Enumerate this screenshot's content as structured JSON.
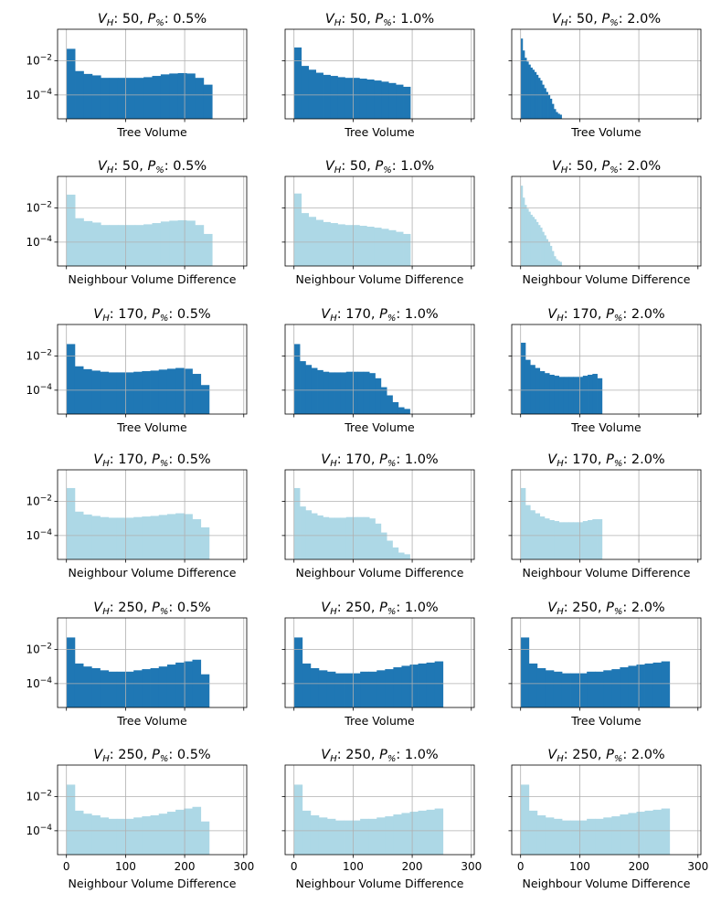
{
  "figure": {
    "rows": 6,
    "cols": 3,
    "sharex": true,
    "sharey": true,
    "grid": true,
    "yscale": "log",
    "colors": {
      "tree": "#1f77b4",
      "neighbour": "#add8e6",
      "grid": "#b0b0b0",
      "spine": "#000000"
    }
  },
  "chart_data": [
    {
      "type": "bar",
      "row": 0,
      "col": 0,
      "title_prefix": "V",
      "title_sub": "H",
      "title_mid": ": 50, ",
      "title_p": "P",
      "title_psub": "%",
      "title_suffix": ": 0.5%",
      "xlabel": "Tree Volume",
      "series": "tree",
      "bin_width": 14.5,
      "xlim": [
        -15,
        305
      ],
      "ylim": [
        4e-06,
        0.7
      ],
      "values": [
        0.05,
        0.0025,
        0.0017,
        0.0014,
        0.001,
        0.001,
        0.001,
        0.001,
        0.001,
        0.0011,
        0.0013,
        0.0016,
        0.0018,
        0.0019,
        0.0018,
        0.001,
        0.0004
      ]
    },
    {
      "type": "bar",
      "row": 0,
      "col": 1,
      "title_prefix": "V",
      "title_sub": "H",
      "title_mid": ": 50, ",
      "title_p": "P",
      "title_psub": "%",
      "title_suffix": ": 1.0%",
      "xlabel": "Tree Volume",
      "series": "tree",
      "bin_width": 12.3,
      "xlim": [
        -15,
        305
      ],
      "ylim": [
        4e-06,
        0.7
      ],
      "values": [
        0.06,
        0.005,
        0.003,
        0.002,
        0.0015,
        0.0013,
        0.0011,
        0.001,
        0.001,
        0.0009,
        0.0008,
        0.0007,
        0.0006,
        0.0005,
        0.0004,
        0.0003
      ]
    },
    {
      "type": "bar",
      "row": 0,
      "col": 2,
      "title_prefix": "V",
      "title_sub": "H",
      "title_mid": ": 50, ",
      "title_p": "P",
      "title_psub": "%",
      "title_suffix": ": 2.0%",
      "xlabel": "Tree Volume",
      "series": "tree",
      "bin_width": 3.3,
      "xlim": [
        -15,
        305
      ],
      "ylim": [
        4e-06,
        0.7
      ],
      "values": [
        0.2,
        0.04,
        0.015,
        0.009,
        0.006,
        0.004,
        0.003,
        0.0022,
        0.0015,
        0.001,
        0.0007,
        0.0004,
        0.00025,
        0.00015,
        0.0001,
        6e-05,
        3e-05,
        1.5e-05,
        1e-05,
        8e-06,
        7e-06
      ]
    },
    {
      "type": "bar",
      "row": 1,
      "col": 0,
      "title_prefix": "V",
      "title_sub": "H",
      "title_mid": ": 50, ",
      "title_p": "P",
      "title_psub": "%",
      "title_suffix": ": 0.5%",
      "xlabel": "Neighbour Volume Difference",
      "series": "neighbour",
      "bin_width": 14.5,
      "xlim": [
        -15,
        305
      ],
      "ylim": [
        4e-06,
        0.7
      ],
      "values": [
        0.06,
        0.0025,
        0.0017,
        0.0014,
        0.001,
        0.001,
        0.001,
        0.001,
        0.001,
        0.0011,
        0.0013,
        0.0016,
        0.0018,
        0.0019,
        0.0018,
        0.001,
        0.0003
      ]
    },
    {
      "type": "bar",
      "row": 1,
      "col": 1,
      "title_prefix": "V",
      "title_sub": "H",
      "title_mid": ": 50, ",
      "title_p": "P",
      "title_psub": "%",
      "title_suffix": ": 1.0%",
      "xlabel": "Neighbour Volume Difference",
      "series": "neighbour",
      "bin_width": 12.3,
      "xlim": [
        -15,
        305
      ],
      "ylim": [
        4e-06,
        0.7
      ],
      "values": [
        0.07,
        0.005,
        0.003,
        0.002,
        0.0015,
        0.0013,
        0.0011,
        0.001,
        0.001,
        0.0009,
        0.0008,
        0.0007,
        0.0006,
        0.0005,
        0.0004,
        0.0003
      ]
    },
    {
      "type": "bar",
      "row": 1,
      "col": 2,
      "title_prefix": "V",
      "title_sub": "H",
      "title_mid": ": 50, ",
      "title_p": "P",
      "title_psub": "%",
      "title_suffix": ": 2.0%",
      "xlabel": "Neighbour Volume Difference",
      "series": "neighbour",
      "bin_width": 3.3,
      "xlim": [
        -15,
        305
      ],
      "ylim": [
        4e-06,
        0.7
      ],
      "values": [
        0.2,
        0.04,
        0.015,
        0.009,
        0.006,
        0.004,
        0.003,
        0.0022,
        0.0015,
        0.001,
        0.0007,
        0.0004,
        0.00025,
        0.00015,
        0.0001,
        6e-05,
        3e-05,
        1.5e-05,
        1e-05,
        8e-06,
        7e-06
      ]
    },
    {
      "type": "bar",
      "row": 2,
      "col": 0,
      "title_prefix": "V",
      "title_sub": "H",
      "title_mid": ": 170, ",
      "title_p": "P",
      "title_psub": "%",
      "title_suffix": ": 0.5%",
      "xlabel": "Tree Volume",
      "series": "tree",
      "bin_width": 14.2,
      "xlim": [
        -15,
        305
      ],
      "ylim": [
        4e-06,
        0.7
      ],
      "values": [
        0.05,
        0.0025,
        0.0017,
        0.0014,
        0.0012,
        0.0011,
        0.0011,
        0.0011,
        0.0012,
        0.0013,
        0.0014,
        0.0016,
        0.0018,
        0.002,
        0.0018,
        0.0009,
        0.0002
      ]
    },
    {
      "type": "bar",
      "row": 2,
      "col": 1,
      "title_prefix": "V",
      "title_sub": "H",
      "title_mid": ": 170, ",
      "title_p": "P",
      "title_psub": "%",
      "title_suffix": ": 1.0%",
      "xlabel": "Tree Volume",
      "series": "tree",
      "bin_width": 9.8,
      "xlim": [
        -15,
        305
      ],
      "ylim": [
        4e-06,
        0.7
      ],
      "values": [
        0.05,
        0.005,
        0.003,
        0.002,
        0.0015,
        0.0012,
        0.0011,
        0.0011,
        0.0011,
        0.0012,
        0.0012,
        0.0012,
        0.0012,
        0.001,
        0.0005,
        0.00015,
        5e-05,
        2e-05,
        1e-05,
        8e-06
      ]
    },
    {
      "type": "bar",
      "row": 2,
      "col": 2,
      "title_prefix": "V",
      "title_sub": "H",
      "title_mid": ": 170, ",
      "title_p": "P",
      "title_psub": "%",
      "title_suffix": ": 2.0%",
      "xlabel": "Tree Volume",
      "series": "tree",
      "bin_width": 8.1,
      "xlim": [
        -15,
        305
      ],
      "ylim": [
        4e-06,
        0.7
      ],
      "values": [
        0.06,
        0.006,
        0.003,
        0.002,
        0.0013,
        0.001,
        0.0008,
        0.0007,
        0.0006,
        0.0006,
        0.0006,
        0.0006,
        0.0006,
        0.0007,
        0.0008,
        0.0009,
        0.0005
      ]
    },
    {
      "type": "bar",
      "row": 3,
      "col": 0,
      "title_prefix": "V",
      "title_sub": "H",
      "title_mid": ": 170, ",
      "title_p": "P",
      "title_psub": "%",
      "title_suffix": ": 0.5%",
      "xlabel": "Neighbour Volume Difference",
      "series": "neighbour",
      "bin_width": 14.2,
      "xlim": [
        -15,
        305
      ],
      "ylim": [
        4e-06,
        0.7
      ],
      "values": [
        0.06,
        0.0025,
        0.0017,
        0.0014,
        0.0012,
        0.0011,
        0.0011,
        0.0011,
        0.0012,
        0.0013,
        0.0014,
        0.0016,
        0.0018,
        0.002,
        0.0018,
        0.0009,
        0.0003
      ]
    },
    {
      "type": "bar",
      "row": 3,
      "col": 1,
      "title_prefix": "V",
      "title_sub": "H",
      "title_mid": ": 170, ",
      "title_p": "P",
      "title_psub": "%",
      "title_suffix": ": 1.0%",
      "xlabel": "Neighbour Volume Difference",
      "series": "neighbour",
      "bin_width": 9.8,
      "xlim": [
        -15,
        305
      ],
      "ylim": [
        4e-06,
        0.7
      ],
      "values": [
        0.06,
        0.005,
        0.003,
        0.002,
        0.0015,
        0.0012,
        0.0011,
        0.0011,
        0.0011,
        0.0012,
        0.0012,
        0.0012,
        0.0012,
        0.001,
        0.0005,
        0.00015,
        5e-05,
        2e-05,
        1e-05,
        8e-06
      ]
    },
    {
      "type": "bar",
      "row": 3,
      "col": 2,
      "title_prefix": "V",
      "title_sub": "H",
      "title_mid": ": 170, ",
      "title_p": "P",
      "title_psub": "%",
      "title_suffix": ": 2.0%",
      "xlabel": "Neighbour Volume Difference",
      "series": "neighbour",
      "bin_width": 8.1,
      "xlim": [
        -15,
        305
      ],
      "ylim": [
        4e-06,
        0.7
      ],
      "values": [
        0.06,
        0.006,
        0.003,
        0.002,
        0.0013,
        0.001,
        0.0008,
        0.0007,
        0.0006,
        0.0006,
        0.0006,
        0.0006,
        0.0006,
        0.0007,
        0.0008,
        0.0009,
        0.0009
      ]
    },
    {
      "type": "bar",
      "row": 4,
      "col": 0,
      "title_prefix": "V",
      "title_sub": "H",
      "title_mid": ": 250, ",
      "title_p": "P",
      "title_psub": "%",
      "title_suffix": ": 0.5%",
      "xlabel": "Tree Volume",
      "series": "tree",
      "bin_width": 14.2,
      "xlim": [
        -15,
        305
      ],
      "ylim": [
        4e-06,
        0.7
      ],
      "values": [
        0.05,
        0.0015,
        0.001,
        0.0008,
        0.0006,
        0.0005,
        0.0005,
        0.0005,
        0.0006,
        0.0007,
        0.0008,
        0.001,
        0.0013,
        0.0017,
        0.002,
        0.0025,
        0.00035
      ]
    },
    {
      "type": "bar",
      "row": 4,
      "col": 1,
      "title_prefix": "V",
      "title_sub": "H",
      "title_mid": ": 250, ",
      "title_p": "P",
      "title_psub": "%",
      "title_suffix": ": 1.0%",
      "xlabel": "Tree Volume",
      "series": "tree",
      "bin_width": 14.0,
      "xlim": [
        -15,
        305
      ],
      "ylim": [
        4e-06,
        0.7
      ],
      "values": [
        0.05,
        0.0015,
        0.0008,
        0.0006,
        0.0005,
        0.0004,
        0.0004,
        0.0004,
        0.0005,
        0.0005,
        0.0006,
        0.0007,
        0.0009,
        0.0011,
        0.0013,
        0.0015,
        0.0017,
        0.002
      ]
    },
    {
      "type": "bar",
      "row": 4,
      "col": 2,
      "title_prefix": "V",
      "title_sub": "H",
      "title_mid": ": 250, ",
      "title_p": "P",
      "title_psub": "%",
      "title_suffix": ": 2.0%",
      "xlabel": "Tree Volume",
      "series": "tree",
      "bin_width": 14.0,
      "xlim": [
        -15,
        305
      ],
      "ylim": [
        4e-06,
        0.7
      ],
      "values": [
        0.05,
        0.0015,
        0.0008,
        0.0006,
        0.0005,
        0.0004,
        0.0004,
        0.0004,
        0.0005,
        0.0005,
        0.0006,
        0.0007,
        0.0009,
        0.0011,
        0.0013,
        0.0015,
        0.0017,
        0.002
      ]
    },
    {
      "type": "bar",
      "row": 5,
      "col": 0,
      "title_prefix": "V",
      "title_sub": "H",
      "title_mid": ": 250, ",
      "title_p": "P",
      "title_psub": "%",
      "title_suffix": ": 0.5%",
      "xlabel": "Neighbour Volume Difference",
      "series": "neighbour",
      "bin_width": 14.2,
      "xlim": [
        -15,
        305
      ],
      "ylim": [
        4e-06,
        0.7
      ],
      "values": [
        0.05,
        0.0015,
        0.001,
        0.0008,
        0.0006,
        0.0005,
        0.0005,
        0.0005,
        0.0006,
        0.0007,
        0.0008,
        0.001,
        0.0013,
        0.0017,
        0.002,
        0.0025,
        0.00035
      ]
    },
    {
      "type": "bar",
      "row": 5,
      "col": 1,
      "title_prefix": "V",
      "title_sub": "H",
      "title_mid": ": 250, ",
      "title_p": "P",
      "title_psub": "%",
      "title_suffix": ": 1.0%",
      "xlabel": "Neighbour Volume Difference",
      "series": "neighbour",
      "bin_width": 14.0,
      "xlim": [
        -15,
        305
      ],
      "ylim": [
        4e-06,
        0.7
      ],
      "values": [
        0.05,
        0.0015,
        0.0008,
        0.0006,
        0.0005,
        0.0004,
        0.0004,
        0.0004,
        0.0005,
        0.0005,
        0.0006,
        0.0007,
        0.0009,
        0.0011,
        0.0013,
        0.0015,
        0.0017,
        0.002
      ]
    },
    {
      "type": "bar",
      "row": 5,
      "col": 2,
      "title_prefix": "V",
      "title_sub": "H",
      "title_mid": ": 250, ",
      "title_p": "P",
      "title_psub": "%",
      "title_suffix": ": 2.0%",
      "xlabel": "Neighbour Volume Difference",
      "series": "neighbour",
      "bin_width": 14.0,
      "xlim": [
        -15,
        305
      ],
      "ylim": [
        4e-06,
        0.7
      ],
      "values": [
        0.05,
        0.0015,
        0.0008,
        0.0006,
        0.0005,
        0.0004,
        0.0004,
        0.0004,
        0.0005,
        0.0005,
        0.0006,
        0.0007,
        0.0009,
        0.0011,
        0.0013,
        0.0015,
        0.0017,
        0.002
      ]
    }
  ],
  "axes": {
    "y_ticks": [
      0.01,
      0.0001
    ],
    "y_tick_labels": [
      {
        "base": "10",
        "exp": "−2"
      },
      {
        "base": "10",
        "exp": "−4"
      }
    ],
    "x_ticks": [
      0,
      100,
      200,
      300
    ],
    "x_tick_labels": [
      "0",
      "100",
      "200",
      "300"
    ]
  }
}
